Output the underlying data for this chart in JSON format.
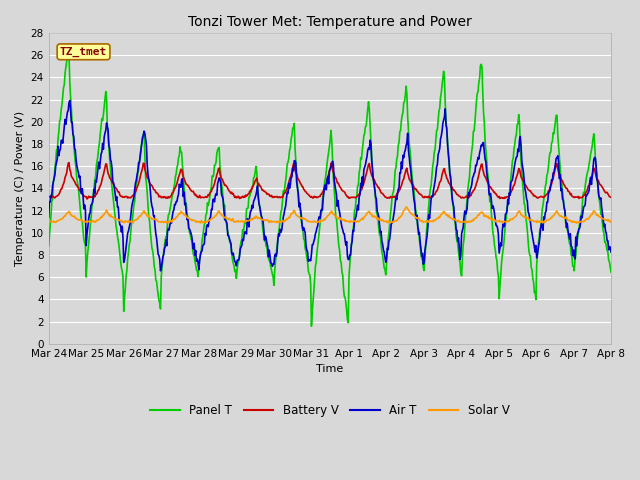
{
  "title": "Tonzi Tower Met: Temperature and Power",
  "xlabel": "Time",
  "ylabel": "Temperature (C) / Power (V)",
  "ylim": [
    0,
    28
  ],
  "yticks": [
    0,
    2,
    4,
    6,
    8,
    10,
    12,
    14,
    16,
    18,
    20,
    22,
    24,
    26,
    28
  ],
  "bg_color": "#d8d8d8",
  "plot_bg_color": "#d8d8d8",
  "grid_color": "#ffffff",
  "x_labels": [
    "Mar 24",
    "Mar 25",
    "Mar 26",
    "Mar 27",
    "Mar 28",
    "Mar 29",
    "Mar 30",
    "Mar 31",
    "Apr 1",
    "Apr 2",
    "Apr 3",
    "Apr 4",
    "Apr 5",
    "Apr 6",
    "Apr 7",
    "Apr 8"
  ],
  "series": {
    "panel_t": {
      "color": "#00cc00",
      "label": "Panel T",
      "lw": 1.2
    },
    "battery_v": {
      "color": "#cc0000",
      "label": "Battery V",
      "lw": 1.2
    },
    "air_t": {
      "color": "#0000cc",
      "label": "Air T",
      "lw": 1.2
    },
    "solar_v": {
      "color": "#ff9900",
      "label": "Solar V",
      "lw": 1.2
    }
  },
  "annotation": {
    "text": "TZ_tmet",
    "fontsize": 8,
    "color": "#880000",
    "bg": "#ffff99",
    "border": "#aa6600"
  },
  "legend_ncol": 4,
  "title_fontsize": 10,
  "axis_label_fontsize": 8,
  "tick_fontsize": 7.5
}
